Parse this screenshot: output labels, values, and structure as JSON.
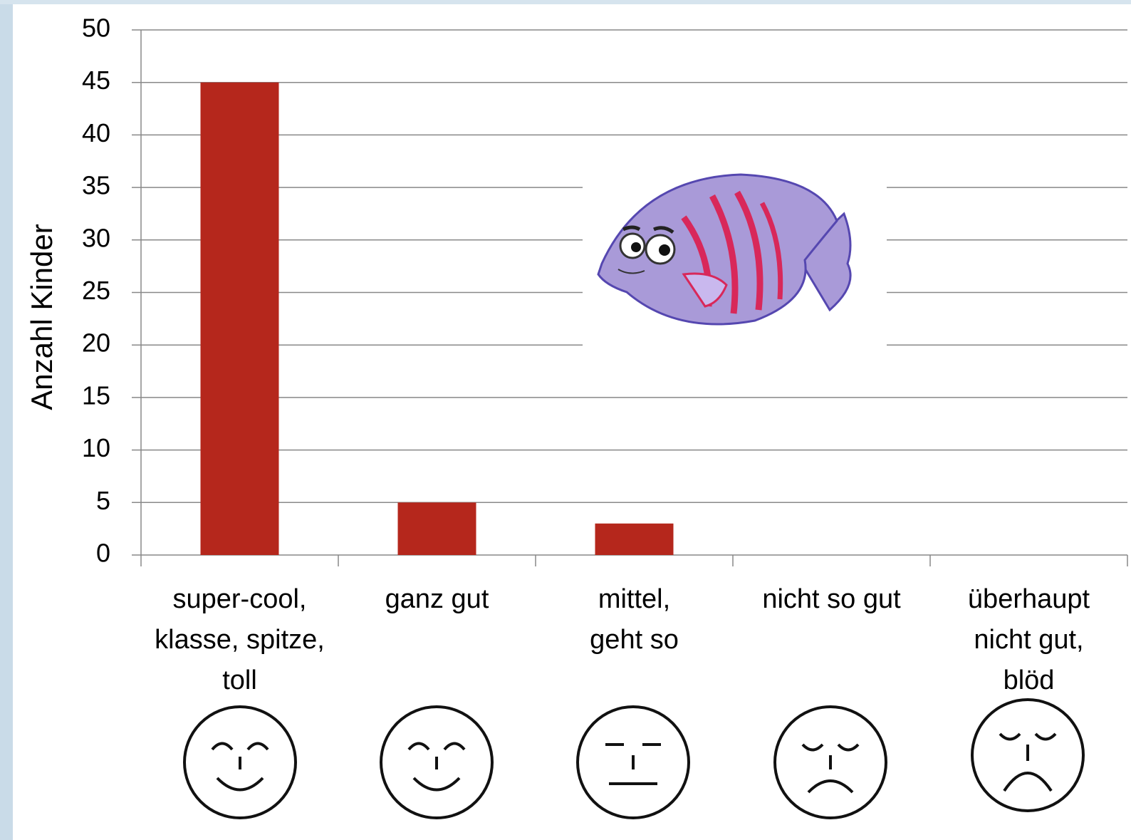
{
  "chart_data": {
    "type": "bar",
    "y_label": "Anzahl Kinder",
    "categories": [
      [
        "super-cool,",
        "klasse, spitze,",
        "toll"
      ],
      [
        "ganz gut"
      ],
      [
        "mittel,",
        "geht so"
      ],
      [
        "nicht so gut"
      ],
      [
        "überhaupt",
        "nicht gut,",
        "blöd"
      ]
    ],
    "values": [
      45,
      5,
      3,
      0,
      0
    ],
    "color": "#b5271c",
    "ylim": [
      0,
      50
    ],
    "yticks": [
      0,
      5,
      10,
      15,
      20,
      25,
      30,
      35,
      40,
      45,
      50
    ],
    "grid": true
  }
}
